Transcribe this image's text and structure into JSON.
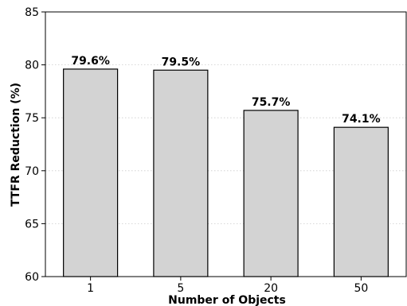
{
  "chart_data": {
    "type": "bar",
    "categories": [
      "1",
      "5",
      "20",
      "50"
    ],
    "values": [
      79.6,
      79.5,
      75.7,
      74.1
    ],
    "data_labels": [
      "79.6%",
      "79.5%",
      "75.7%",
      "74.1%"
    ],
    "xlabel": "Number of Objects",
    "ylabel": "TTFR Reduction (%)",
    "ylim": [
      60,
      85
    ],
    "yticks": [
      60,
      65,
      70,
      75,
      80,
      85
    ],
    "grid": "horizontal-dotted",
    "colors": {
      "bar_fill": "#d3d3d3",
      "bar_edge": "#000000",
      "grid": "#cccccc"
    }
  }
}
